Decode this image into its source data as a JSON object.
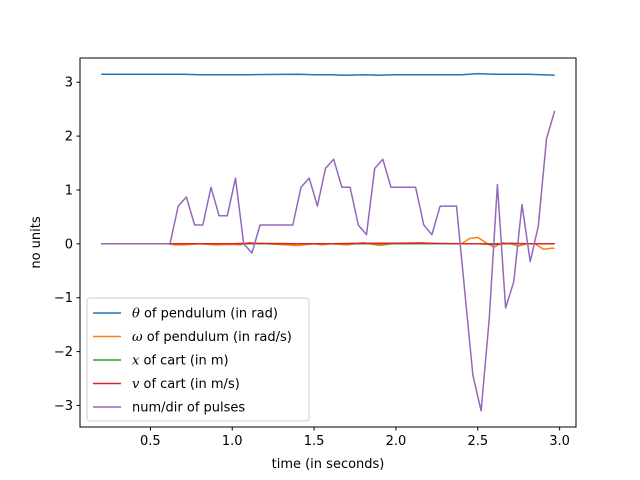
{
  "chart_data": {
    "type": "line",
    "xlabel": "time (in seconds)",
    "ylabel": "no units",
    "xlim": [
      0.07,
      3.1
    ],
    "ylim": [
      -3.4,
      3.45
    ],
    "xticks": [
      {
        "value": 0.5,
        "label": "0.5"
      },
      {
        "value": 1.0,
        "label": "1.0"
      },
      {
        "value": 1.5,
        "label": "1.5"
      },
      {
        "value": 2.0,
        "label": "2.0"
      },
      {
        "value": 2.5,
        "label": "2.5"
      },
      {
        "value": 3.0,
        "label": "3.0"
      }
    ],
    "yticks": [
      {
        "value": -3,
        "label": "−3"
      },
      {
        "value": -2,
        "label": "−2"
      },
      {
        "value": -1,
        "label": "−1"
      },
      {
        "value": 0,
        "label": "0"
      },
      {
        "value": 1,
        "label": "1"
      },
      {
        "value": 2,
        "label": "2"
      },
      {
        "value": 3,
        "label": "3"
      }
    ],
    "grid": false,
    "legend_position": "lower-left",
    "series": [
      {
        "symbol": "θ",
        "name": " of pendulum (in rad)",
        "color": "#1f77b4",
        "x": [
          0.2,
          0.5,
          0.7,
          0.8,
          1.0,
          1.1,
          1.4,
          1.5,
          1.6,
          1.7,
          1.8,
          1.9,
          2.0,
          2.2,
          2.4,
          2.5,
          2.6,
          2.7,
          2.8,
          2.9,
          2.97
        ],
        "y": [
          3.15,
          3.15,
          3.15,
          3.14,
          3.14,
          3.14,
          3.15,
          3.14,
          3.14,
          3.13,
          3.14,
          3.13,
          3.14,
          3.14,
          3.14,
          3.16,
          3.15,
          3.15,
          3.15,
          3.14,
          3.13
        ]
      },
      {
        "symbol": "ω",
        "name": " of pendulum (in rad/s)",
        "color": "#ff7f0e",
        "x": [
          0.2,
          0.5,
          0.6,
          0.65,
          0.7,
          0.8,
          0.9,
          1.0,
          1.05,
          1.1,
          1.4,
          1.5,
          1.55,
          1.6,
          1.7,
          1.8,
          1.9,
          2.0,
          2.15,
          2.25,
          2.35,
          2.4,
          2.45,
          2.5,
          2.55,
          2.6,
          2.65,
          2.7,
          2.75,
          2.8,
          2.85,
          2.9,
          2.95,
          2.97
        ],
        "y": [
          0,
          0,
          0,
          -0.02,
          -0.02,
          0,
          -0.02,
          -0.01,
          -0.02,
          0.02,
          -0.03,
          0,
          -0.02,
          0,
          -0.02,
          0.02,
          -0.03,
          0.01,
          0.02,
          0,
          0,
          0,
          0.1,
          0.12,
          0.02,
          -0.06,
          0.02,
          0,
          -0.04,
          0,
          0,
          -0.1,
          -0.08,
          -0.08
        ]
      },
      {
        "symbol": "x",
        "name": " of cart (in m)",
        "color": "#2ca02c",
        "x": [
          0.2,
          0.6,
          1.0,
          1.4,
          1.8,
          2.2,
          2.4,
          2.6,
          2.8,
          2.97
        ],
        "y": [
          0,
          0,
          0,
          0,
          0,
          0,
          0,
          0,
          0,
          0
        ]
      },
      {
        "symbol": "v",
        "name": " of cart  (in m/s)",
        "color": "#d62728",
        "x": [
          0.2,
          0.5,
          0.7,
          0.9,
          1.0,
          1.1,
          1.4,
          1.6,
          1.8,
          2.0,
          2.2,
          2.4,
          2.5,
          2.6,
          2.7,
          2.8,
          2.9,
          2.97
        ],
        "y": [
          0,
          0,
          0,
          0,
          0,
          0.01,
          0,
          0,
          0.01,
          0.01,
          0.01,
          0,
          0,
          -0.01,
          0.01,
          0,
          0,
          0
        ]
      },
      {
        "symbol": "",
        "name": "num/dir of pulses",
        "color": "#9467bd",
        "x": [
          0.2,
          0.62,
          0.67,
          0.72,
          0.77,
          0.82,
          0.87,
          0.92,
          0.97,
          1.02,
          1.07,
          1.12,
          1.17,
          1.22,
          1.27,
          1.32,
          1.37,
          1.42,
          1.47,
          1.52,
          1.57,
          1.62,
          1.67,
          1.72,
          1.77,
          1.82,
          1.87,
          1.92,
          1.97,
          2.02,
          2.07,
          2.12,
          2.17,
          2.22,
          2.27,
          2.32,
          2.37,
          2.42,
          2.47,
          2.52,
          2.57,
          2.62,
          2.67,
          2.72,
          2.77,
          2.82,
          2.87,
          2.92,
          2.97
        ],
        "y": [
          0,
          0,
          0.7,
          0.87,
          0.35,
          0.35,
          1.05,
          0.52,
          0.52,
          1.22,
          0,
          -0.17,
          0.35,
          0.35,
          0.35,
          0.35,
          0.35,
          1.05,
          1.22,
          0.7,
          1.4,
          1.57,
          1.05,
          1.05,
          0.35,
          0.17,
          1.4,
          1.57,
          1.05,
          1.05,
          1.05,
          1.05,
          0.35,
          0.17,
          0.7,
          0.7,
          0.7,
          -0.87,
          -2.44,
          -3.1,
          -1.4,
          1.1,
          -1.19,
          -0.7,
          0.73,
          -0.33,
          0.33,
          1.95,
          2.47
        ]
      }
    ]
  }
}
